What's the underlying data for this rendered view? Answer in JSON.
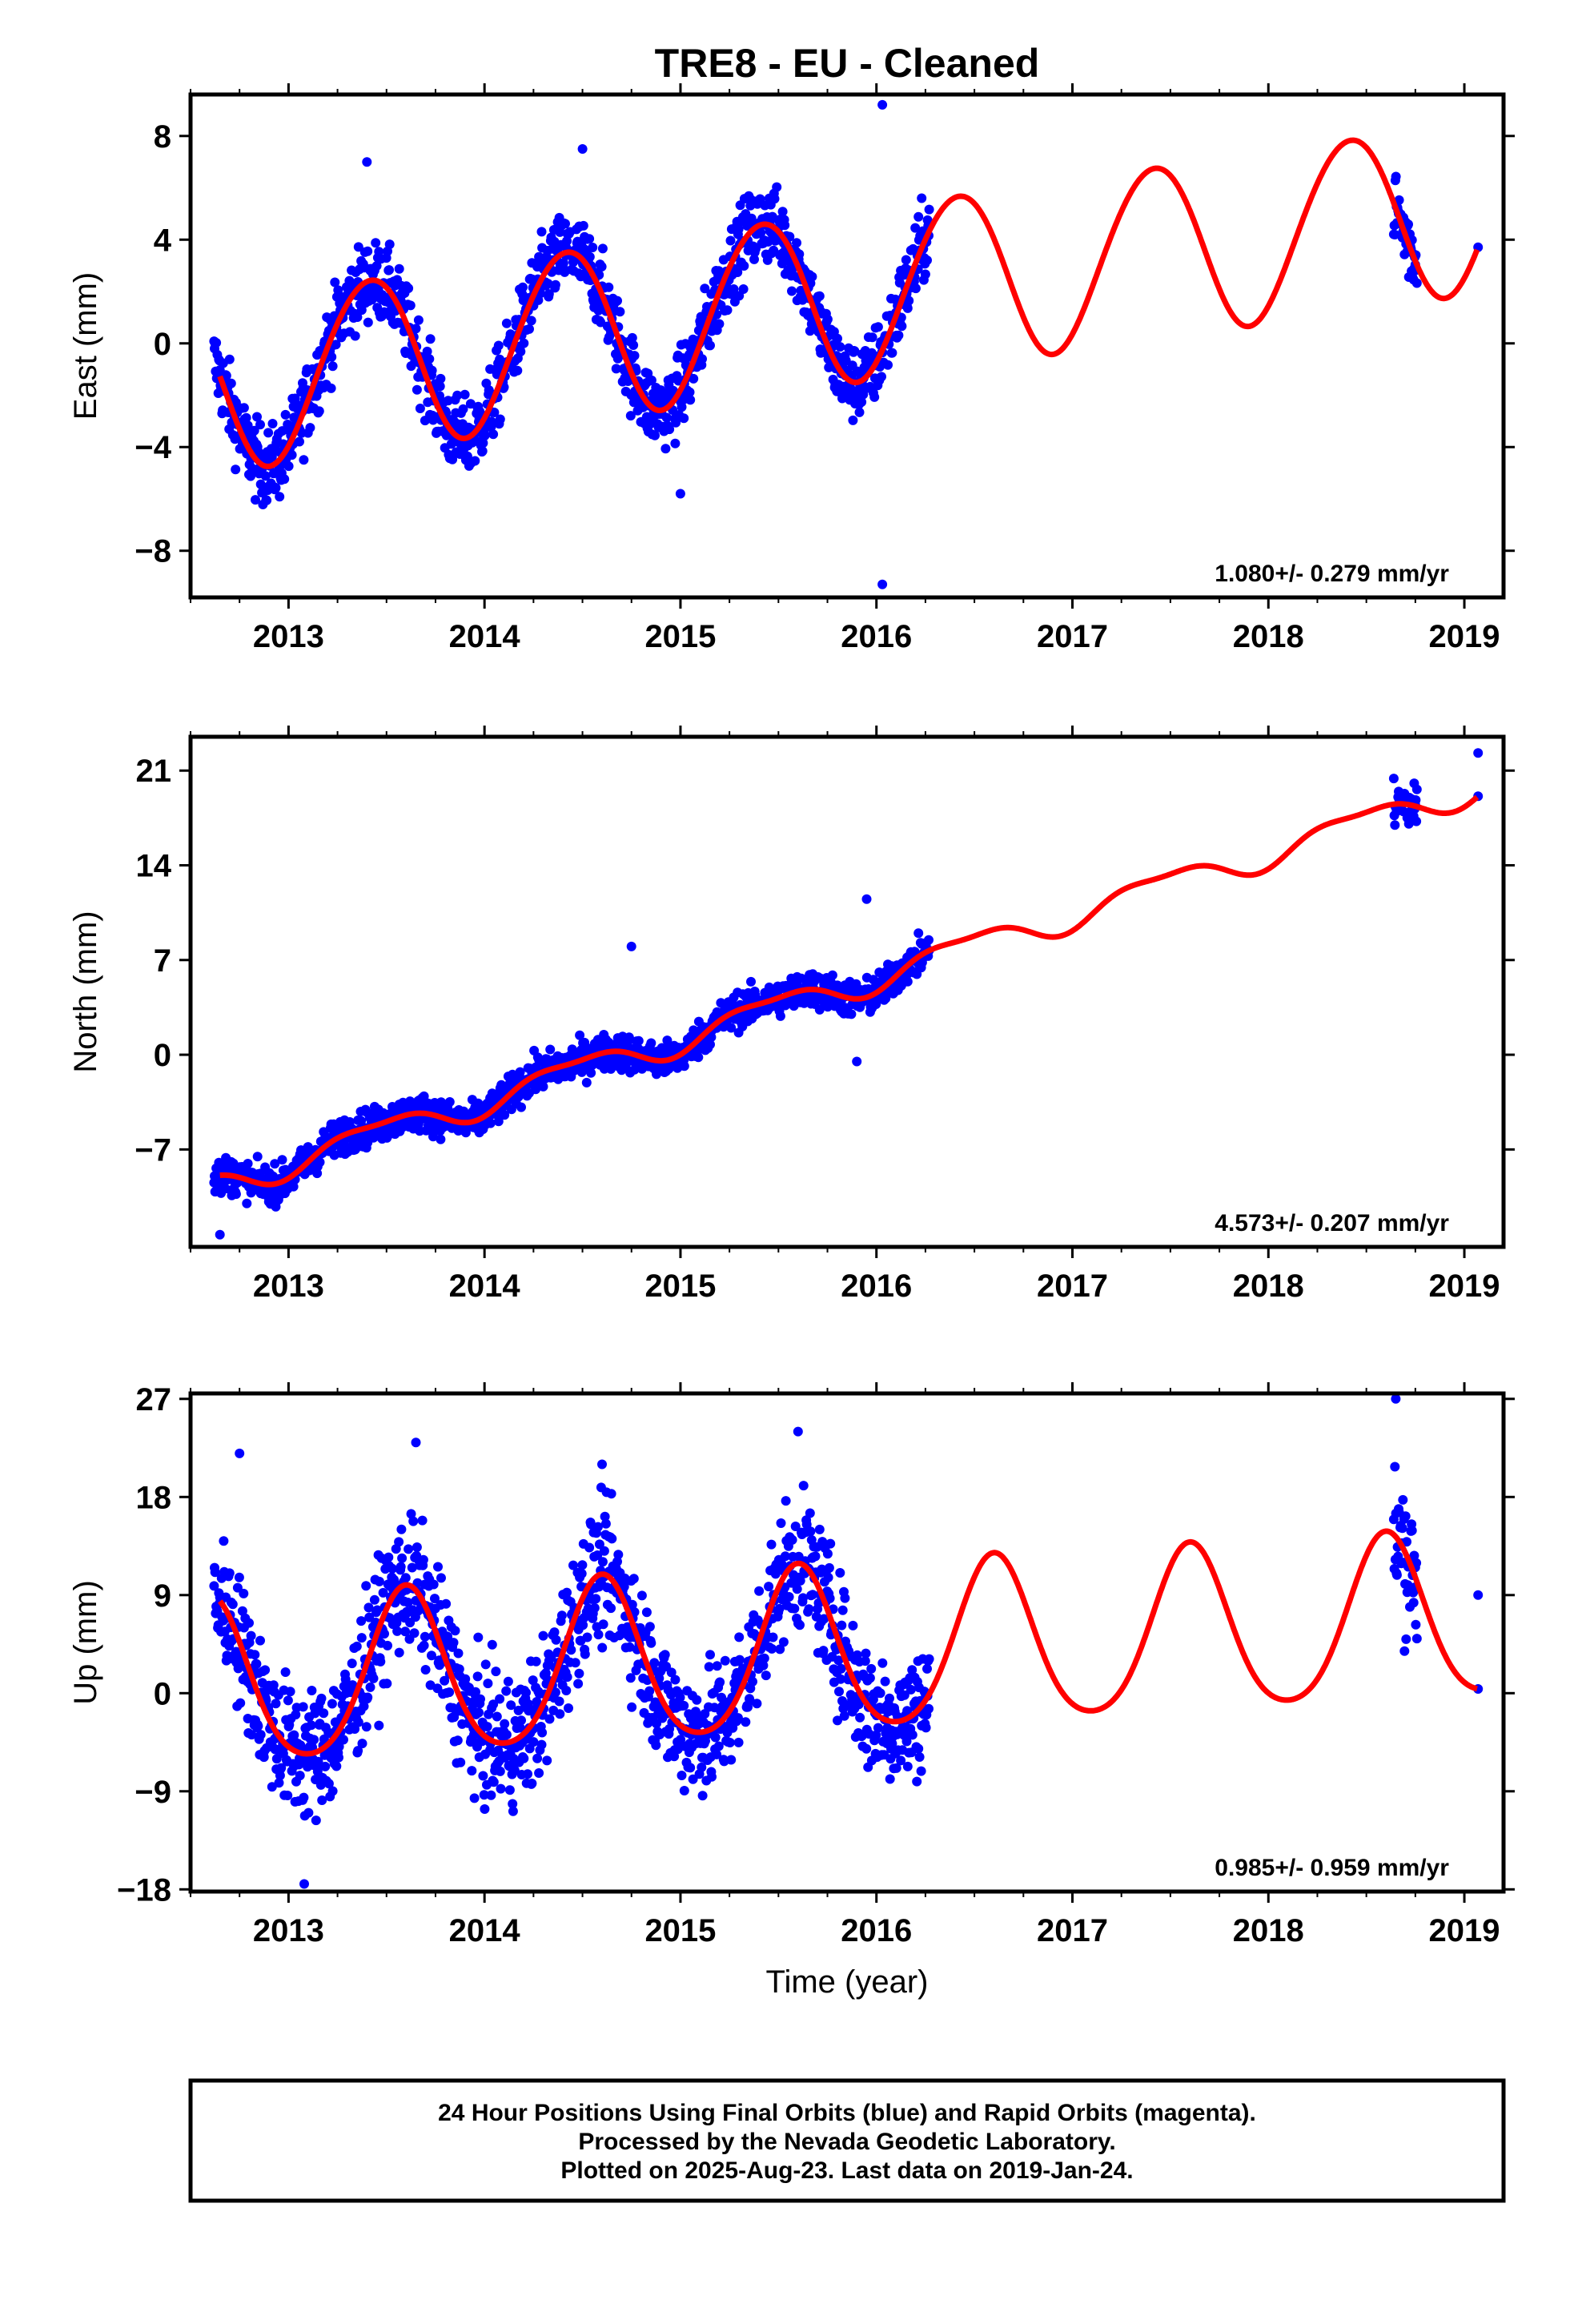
{
  "title": "TRE8  - EU - Cleaned",
  "xlabel": "Time (year)",
  "footer": {
    "line1": "24 Hour Positions Using Final Orbits (blue) and Rapid Orbits (magenta).",
    "line2": "Processed by the Nevada Geodetic Laboratory.",
    "line3": "Plotted on 2025-Aug-23. Last data on 2019-Jan-24."
  },
  "colors": {
    "points": "#0000ff",
    "model": "#ff0000",
    "frame": "#000000"
  },
  "chart_data": [
    {
      "type": "scatter",
      "panel": "east",
      "ylabel": "East (mm)",
      "rate_text": "1.080+/- 0.279 mm/yr",
      "xlim": [
        2012.5,
        2019.2
      ],
      "ylim": [
        -9.8,
        9.6
      ],
      "xticks": [
        2013,
        2014,
        2015,
        2016,
        2017,
        2018,
        2019
      ],
      "yticks": [
        -8,
        -4,
        0,
        4,
        8
      ],
      "model": {
        "name": "",
        "x0": 2012.65,
        "intercept": -1.6,
        "slope": 1.08,
        "annual_amplitude": 3.3,
        "annual_peak_phase": 0.41,
        "semiannual_amplitude": 0.15,
        "semiannual_phase": 0.6
      },
      "data_segments": [
        {
          "start": 2012.62,
          "end": 2016.27,
          "scatter": 1.0
        },
        {
          "start": 2018.64,
          "end": 2018.76,
          "scatter": 1.0
        },
        {
          "start": 2019.07,
          "end": 2019.07,
          "scatter": 0.0
        }
      ],
      "outliers": [
        {
          "x": 2016.03,
          "y": 9.2
        },
        {
          "x": 2016.03,
          "y": -9.3
        },
        {
          "x": 2013.4,
          "y": 7.0
        },
        {
          "x": 2014.5,
          "y": 7.5
        },
        {
          "x": 2015.0,
          "y": -5.8
        }
      ],
      "series": [
        {
          "name": "",
          "role": "observed positions"
        },
        {
          "name": "",
          "role": "model fit"
        }
      ]
    },
    {
      "type": "scatter",
      "panel": "north",
      "ylabel": "North (mm)",
      "rate_text": "4.573+/- 0.207 mm/yr",
      "xlim": [
        2012.5,
        2019.2
      ],
      "ylim": [
        -14.2,
        23.5
      ],
      "xticks": [
        2013,
        2014,
        2015,
        2016,
        2017,
        2018,
        2019
      ],
      "yticks": [
        -7,
        0,
        7,
        14,
        21
      ],
      "model": {
        "name": "",
        "x0": 2012.65,
        "intercept": -9.5,
        "slope": 4.573,
        "annual_amplitude": 1.0,
        "annual_peak_phase": 0.45,
        "semiannual_amplitude": 0.35,
        "semiannual_phase": 0.2
      },
      "data_segments": [
        {
          "start": 2012.62,
          "end": 2016.27,
          "scatter": 0.9
        },
        {
          "start": 2018.64,
          "end": 2018.76,
          "scatter": 1.1
        },
        {
          "start": 2019.07,
          "end": 2019.07,
          "scatter": 0.0
        }
      ],
      "outliers": [
        {
          "x": 2012.65,
          "y": -13.3
        },
        {
          "x": 2014.75,
          "y": 8.0
        },
        {
          "x": 2015.95,
          "y": 11.5
        },
        {
          "x": 2015.9,
          "y": -0.5
        },
        {
          "x": 2019.07,
          "y": 22.3
        }
      ],
      "series": [
        {
          "name": "",
          "role": "observed positions"
        },
        {
          "name": "",
          "role": "model fit"
        }
      ]
    },
    {
      "type": "scatter",
      "panel": "up",
      "ylabel": "Up (mm)",
      "rate_text": "0.985+/- 0.959 mm/yr",
      "xlim": [
        2012.5,
        2019.2
      ],
      "ylim": [
        -18.2,
        27.5
      ],
      "xticks": [
        2013,
        2014,
        2015,
        2016,
        2017,
        2018,
        2019
      ],
      "yticks": [
        -18,
        -9,
        0,
        9,
        18,
        27
      ],
      "model": {
        "name": "",
        "x0": 2012.65,
        "intercept": 0.5,
        "slope": 0.985,
        "annual_amplitude": 7.5,
        "annual_peak_phase": 0.6,
        "semiannual_amplitude": 1.0,
        "semiannual_phase": 0.1
      },
      "data_segments": [
        {
          "start": 2012.62,
          "end": 2016.27,
          "scatter": 4.0
        },
        {
          "start": 2018.64,
          "end": 2018.76,
          "scatter": 4.5
        },
        {
          "start": 2019.07,
          "end": 2019.07,
          "scatter": 0.0
        }
      ],
      "outliers": [
        {
          "x": 2012.75,
          "y": 22.0
        },
        {
          "x": 2013.65,
          "y": 23.0
        },
        {
          "x": 2014.6,
          "y": 21.0
        },
        {
          "x": 2015.6,
          "y": 24.0
        },
        {
          "x": 2018.65,
          "y": 27.0
        },
        {
          "x": 2013.08,
          "y": -17.5
        },
        {
          "x": 2019.07,
          "y": 9.0
        }
      ],
      "series": [
        {
          "name": "",
          "role": "observed positions"
        },
        {
          "name": "",
          "role": "model fit"
        }
      ]
    }
  ]
}
